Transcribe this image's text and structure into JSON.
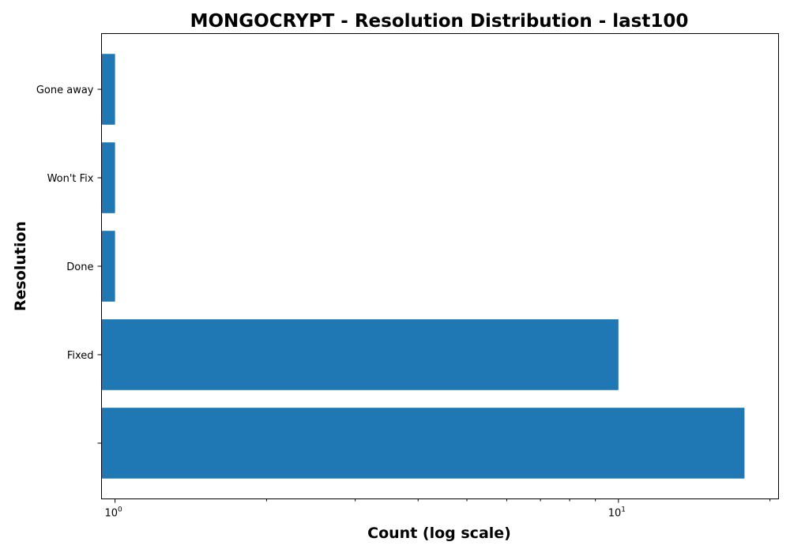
{
  "chart_data": {
    "type": "bar",
    "orientation": "horizontal",
    "title": "MONGOCRYPT - Resolution Distribution - last100",
    "xlabel": "Count (log scale)",
    "ylabel": "Resolution",
    "x_scale": "log",
    "xlim": [
      0.94,
      20.8
    ],
    "categories": [
      "",
      "Fixed",
      "Done",
      "Won't Fix",
      "Gone away"
    ],
    "values": [
      17.8,
      10,
      1,
      1,
      1
    ],
    "x_ticks": [
      {
        "value": 1,
        "base": "10",
        "exponent": "0"
      },
      {
        "value": 10,
        "base": "10",
        "exponent": "1"
      }
    ],
    "grid": false,
    "legend": "none",
    "bar_color": "#1f77b4"
  }
}
